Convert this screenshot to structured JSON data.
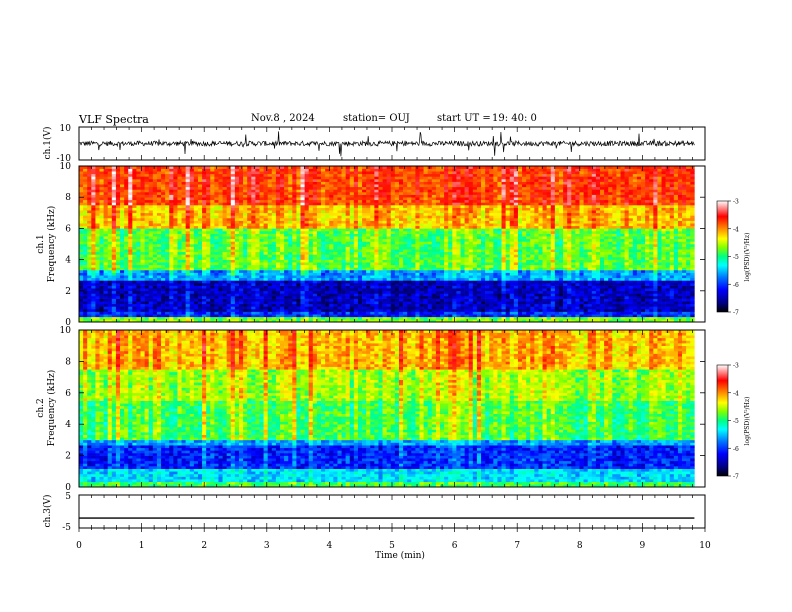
{
  "header": {
    "title": "VLF Spectra",
    "date": "Nov.8  , 2024",
    "station": "station= OUJ",
    "start_label": "start  UT  =",
    "start_time": "19: 40: 0"
  },
  "colors": {
    "colormap": [
      "#000080",
      "#0000ff",
      "#0080ff",
      "#00ffff",
      "#00ff80",
      "#80ff00",
      "#ffff00",
      "#ff8000",
      "#ff0000",
      "#ffffff"
    ],
    "trace": "#000000"
  },
  "chart_data": [
    {
      "type": "line",
      "name": "ch1-waveform",
      "ylabel": "ch.1(V)",
      "ylim": [
        -10,
        10
      ],
      "y_ticks": [
        "10",
        "-10"
      ],
      "description_values": {
        "baseline": 0,
        "typical_amplitude": 1.5,
        "spike_max": 8
      },
      "x_range": [
        0,
        10
      ]
    },
    {
      "type": "heatmap",
      "name": "ch1-spectrogram",
      "ylabel": "ch.1\nFrequency  (kHz)",
      "ylabel_line1": "ch.1",
      "ylabel_line2": "Frequency  (kHz)",
      "ylim": [
        0,
        10
      ],
      "y_ticks": [
        "0",
        "2",
        "4",
        "6",
        "8",
        "10"
      ],
      "x_range": [
        0,
        9.83
      ],
      "bands": [
        {
          "fmin": 0.0,
          "fmax": 0.3,
          "level": -5.0
        },
        {
          "fmin": 0.3,
          "fmax": 0.6,
          "level": -6.4
        },
        {
          "fmin": 0.6,
          "fmax": 2.7,
          "level": -6.7
        },
        {
          "fmin": 2.7,
          "fmax": 3.4,
          "level": -6.0
        },
        {
          "fmin": 3.4,
          "fmax": 6.0,
          "level": -5.1
        },
        {
          "fmin": 6.0,
          "fmax": 7.5,
          "level": -4.4
        },
        {
          "fmin": 7.5,
          "fmax": 10.0,
          "level": -3.9
        }
      ],
      "colorbar": {
        "label": "log(PSD)(V²/Hz)",
        "range": [
          -7,
          -3
        ],
        "ticks": [
          "-3",
          "-4",
          "-5",
          "-6",
          "-7"
        ]
      }
    },
    {
      "type": "heatmap",
      "name": "ch2-spectrogram",
      "ylabel_line1": "ch.2",
      "ylabel_line2": "Frequency  (kHz)",
      "ylim": [
        0,
        10
      ],
      "y_ticks": [
        "0",
        "2",
        "4",
        "6",
        "8",
        "10"
      ],
      "x_range": [
        0,
        9.83
      ],
      "bands": [
        {
          "fmin": 0.0,
          "fmax": 0.4,
          "level": -5.2
        },
        {
          "fmin": 0.4,
          "fmax": 1.2,
          "level": -5.8
        },
        {
          "fmin": 1.2,
          "fmax": 2.6,
          "level": -6.4
        },
        {
          "fmin": 2.6,
          "fmax": 3.0,
          "level": -6.0
        },
        {
          "fmin": 3.0,
          "fmax": 5.5,
          "level": -5.2
        },
        {
          "fmin": 5.5,
          "fmax": 7.5,
          "level": -4.9
        },
        {
          "fmin": 7.5,
          "fmax": 10.0,
          "level": -4.4
        }
      ],
      "colorbar": {
        "label": "log(PSD)(V²/Hz)",
        "range": [
          -7,
          -3
        ],
        "ticks": [
          "-3",
          "-4",
          "-5",
          "-6",
          "-7"
        ]
      }
    },
    {
      "type": "line",
      "name": "ch3-waveform",
      "ylabel": "ch.3(V)",
      "ylim": [
        -5,
        5
      ],
      "y_ticks": [
        "5",
        "-5"
      ],
      "constant_value": -2,
      "x_range": [
        0,
        9.83
      ]
    }
  ],
  "xaxis": {
    "label": "Time  (min)",
    "range": [
      0,
      10
    ],
    "ticks": [
      "0",
      "1",
      "2",
      "3",
      "4",
      "5",
      "6",
      "7",
      "8",
      "9",
      "10"
    ]
  }
}
